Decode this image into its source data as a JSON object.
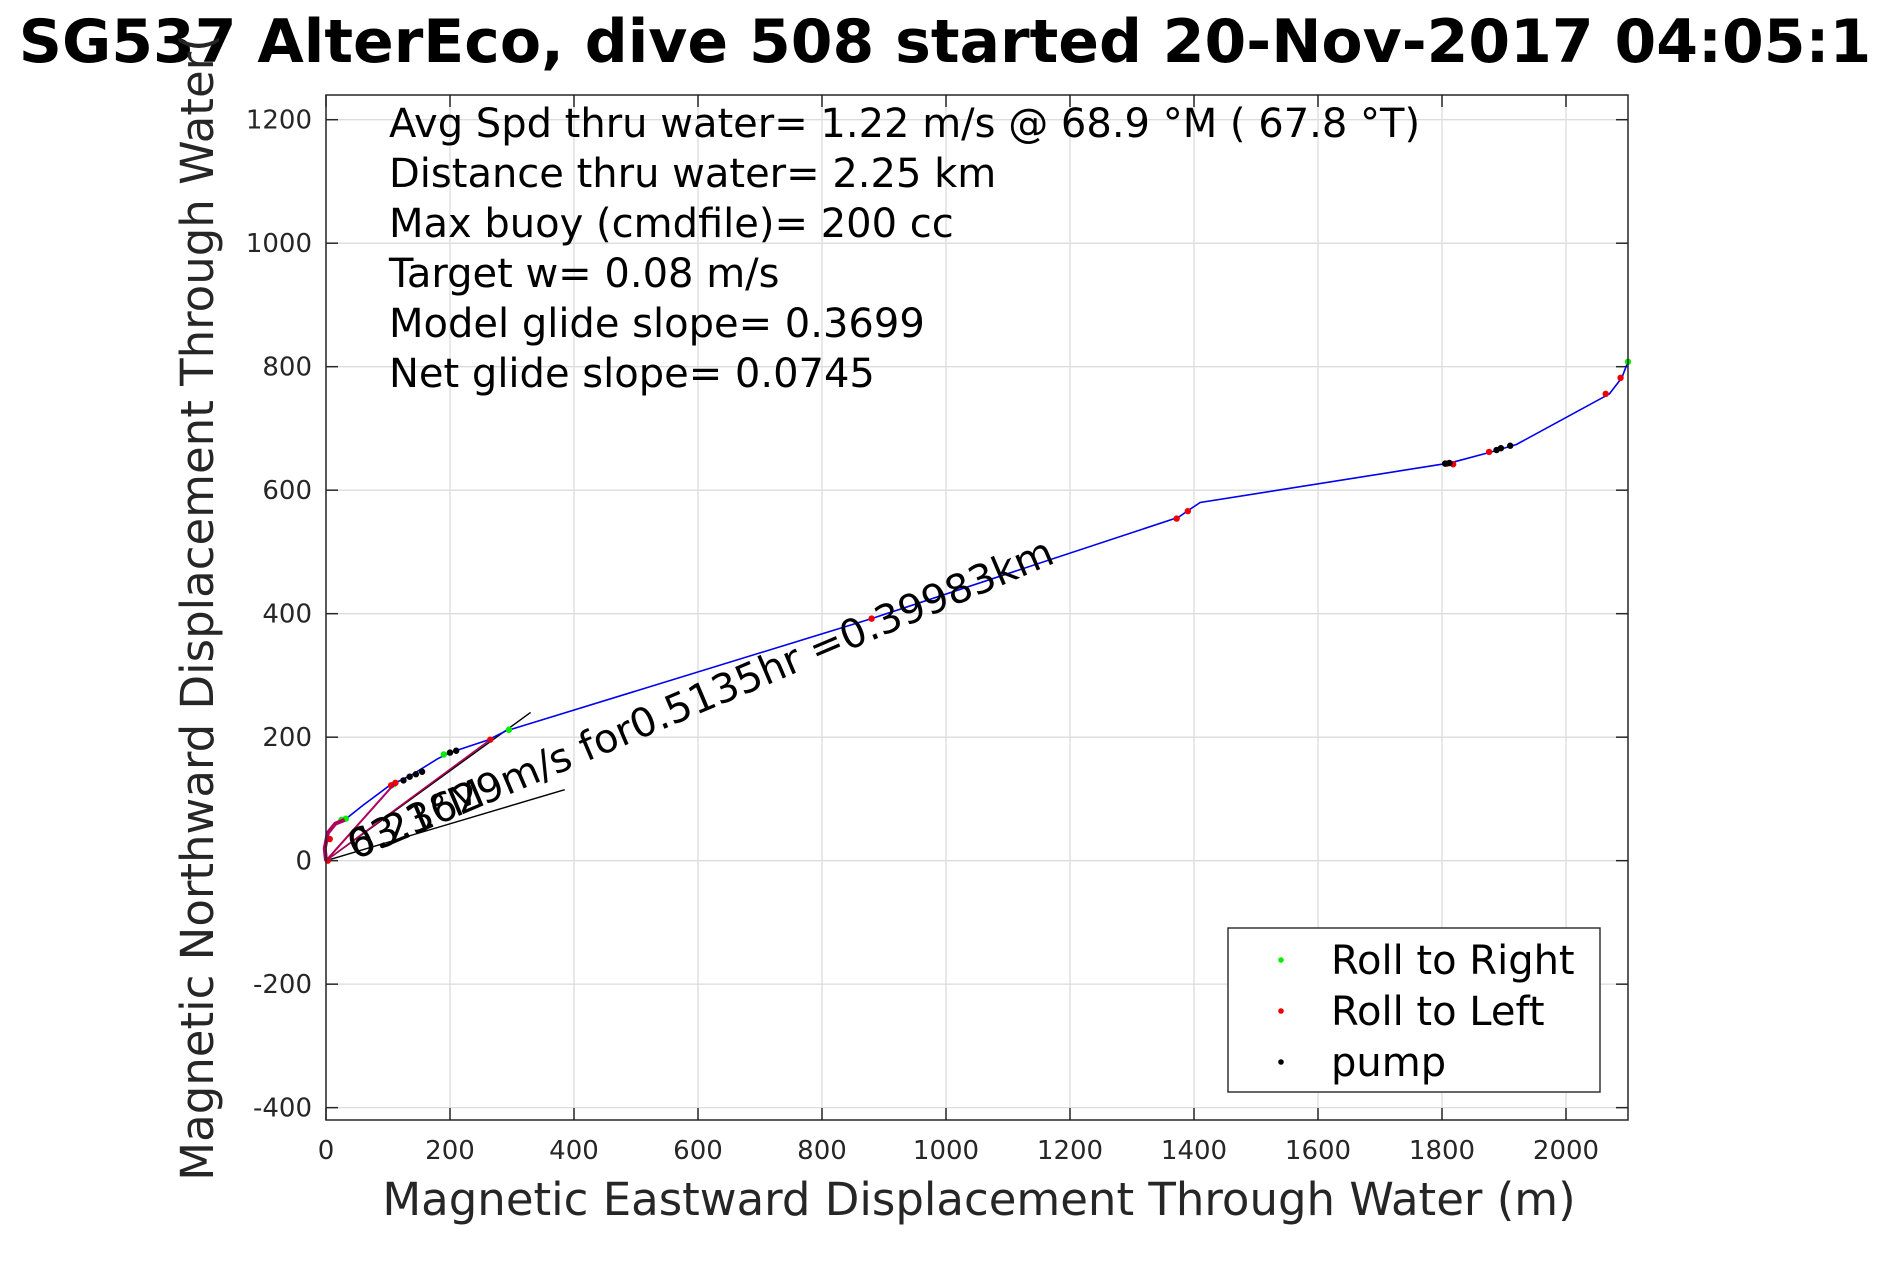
{
  "chart_data": {
    "type": "scatter",
    "title": "SG537 AlterEco, dive 508 started 20-Nov-2017 04:05:1",
    "xlabel": "Magnetic Eastward Displacement Through Water (m)",
    "ylabel": "Magnetic Northward Displacement Through Water(",
    "xlim": [
      0,
      2100
    ],
    "ylim": [
      -420,
      1240
    ],
    "xticks": [
      0,
      200,
      400,
      600,
      800,
      1000,
      1200,
      1400,
      1600,
      1800,
      2000
    ],
    "yticks": [
      -400,
      -200,
      0,
      200,
      400,
      600,
      800,
      1000,
      1200
    ],
    "grid": true,
    "legend_position": "bottom-right",
    "text_annotations": [
      "Avg Spd thru water=  1.22 m/s @  68.9 °M ( 67.8 °T)",
      "Distance thru water=  2.25 km",
      "Max buoy (cmdfile)= 200 cc",
      "Target w= 0.08 m/s",
      "Model glide slope= 0.3699",
      "Net glide slope= 0.0745"
    ],
    "current_annotation": "0.21629m/s for0.5135hr =0.39983km",
    "current_bearing_annotation": "63.3°M",
    "series": [
      {
        "name": "track",
        "color": "#0000ee",
        "style": "line",
        "points": [
          [
            0,
            0
          ],
          [
            -2,
            20
          ],
          [
            3,
            45
          ],
          [
            15,
            60
          ],
          [
            30,
            66
          ],
          [
            60,
            90
          ],
          [
            100,
            120
          ],
          [
            140,
            140
          ],
          [
            180,
            165
          ],
          [
            200,
            175
          ],
          [
            260,
            195
          ],
          [
            290,
            210
          ],
          [
            880,
            392
          ],
          [
            1375,
            556
          ],
          [
            1392,
            568
          ],
          [
            1410,
            580
          ],
          [
            1800,
            642
          ],
          [
            1820,
            646
          ],
          [
            1880,
            662
          ],
          [
            1920,
            674
          ],
          [
            2070,
            756
          ],
          [
            2090,
            782
          ],
          [
            2100,
            808
          ]
        ]
      },
      {
        "name": "Roll to Right",
        "color": "#00ee00",
        "style": "points",
        "points": [
          [
            25,
            66
          ],
          [
            32,
            68
          ],
          [
            110,
            124
          ],
          [
            190,
            172
          ],
          [
            200,
            175
          ],
          [
            295,
            212
          ],
          [
            2100,
            808
          ]
        ]
      },
      {
        "name": "Roll to Left",
        "color": "#ee0000",
        "style": "points",
        "points": [
          [
            3,
            0
          ],
          [
            6,
            35
          ],
          [
            105,
            122
          ],
          [
            112,
            126
          ],
          [
            265,
            196
          ],
          [
            880,
            392
          ],
          [
            1372,
            554
          ],
          [
            1390,
            566
          ],
          [
            1808,
            643
          ],
          [
            1818,
            642
          ],
          [
            1876,
            662
          ],
          [
            2064,
            756
          ],
          [
            2088,
            782
          ]
        ]
      },
      {
        "name": "pump",
        "color": "#000000",
        "style": "points",
        "points": [
          [
            125,
            130
          ],
          [
            135,
            136
          ],
          [
            145,
            140
          ],
          [
            155,
            144
          ],
          [
            200,
            175
          ],
          [
            210,
            178
          ],
          [
            1805,
            643
          ],
          [
            1812,
            644
          ],
          [
            1888,
            665
          ],
          [
            1895,
            668
          ],
          [
            1910,
            672
          ]
        ]
      }
    ],
    "reference_lines": [
      {
        "name": "current vector",
        "points": [
          [
            0,
            0
          ],
          [
            330,
            240
          ]
        ]
      },
      {
        "name": "model heading",
        "points": [
          [
            0,
            0
          ],
          [
            385,
            115
          ]
        ]
      }
    ]
  }
}
